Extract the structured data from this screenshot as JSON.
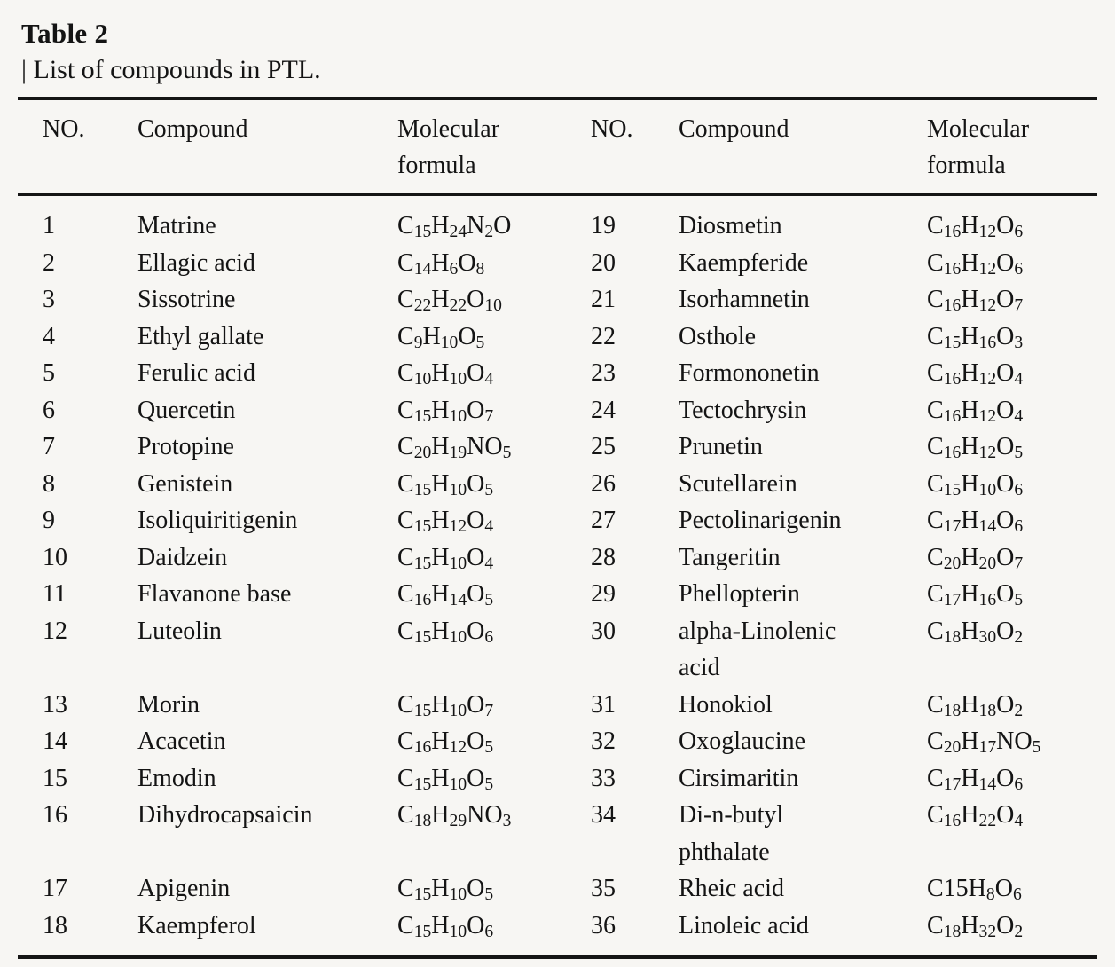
{
  "table": {
    "title": "Table 2",
    "subtitle": "| List of compounds in PTL.",
    "columns": {
      "no": "NO.",
      "compound": "Compound",
      "formula": "Molecular formula"
    },
    "rows": [
      {
        "left": {
          "no": "1",
          "compound": "Matrine",
          "formula": "C~15~H~24~N~2~O"
        },
        "right": {
          "no": "19",
          "compound": "Diosmetin",
          "formula": "C~16~H~12~O~6~"
        }
      },
      {
        "left": {
          "no": "2",
          "compound": "Ellagic acid",
          "formula": "C~14~H~6~O~8~"
        },
        "right": {
          "no": "20",
          "compound": "Kaempferide",
          "formula": "C~16~H~12~O~6~"
        }
      },
      {
        "left": {
          "no": "3",
          "compound": "Sissotrine",
          "formula": "C~22~H~22~O~10~"
        },
        "right": {
          "no": "21",
          "compound": "Isorhamnetin",
          "formula": "C~16~H~12~O~7~"
        }
      },
      {
        "left": {
          "no": "4",
          "compound": "Ethyl gallate",
          "formula": "C~9~H~10~O~5~"
        },
        "right": {
          "no": "22",
          "compound": "Osthole",
          "formula": "C~15~H~16~O~3~"
        }
      },
      {
        "left": {
          "no": "5",
          "compound": "Ferulic acid",
          "formula": "C~10~H~10~O~4~"
        },
        "right": {
          "no": "23",
          "compound": "Formononetin",
          "formula": "C~16~H~12~O~4~"
        }
      },
      {
        "left": {
          "no": "6",
          "compound": "Quercetin",
          "formula": "C~15~H~10~O~7~"
        },
        "right": {
          "no": "24",
          "compound": "Tectochrysin",
          "formula": "C~16~H~12~O~4~"
        }
      },
      {
        "left": {
          "no": "7",
          "compound": "Protopine",
          "formula": "C~20~H~19~NO~5~"
        },
        "right": {
          "no": "25",
          "compound": "Prunetin",
          "formula": "C~16~H~12~O~5~"
        }
      },
      {
        "left": {
          "no": "8",
          "compound": "Genistein",
          "formula": "C~15~H~10~O~5~"
        },
        "right": {
          "no": "26",
          "compound": "Scutellarein",
          "formula": "C~15~H~10~O~6~"
        }
      },
      {
        "left": {
          "no": "9",
          "compound": "Isoliquiritigenin",
          "formula": "C~15~H~12~O~4~"
        },
        "right": {
          "no": "27",
          "compound": "Pectolinarigenin",
          "formula": "C~17~H~14~O~6~"
        }
      },
      {
        "left": {
          "no": "10",
          "compound": "Daidzein",
          "formula": "C~15~H~10~O~4~"
        },
        "right": {
          "no": "28",
          "compound": "Tangeritin",
          "formula": "C~20~H~20~O~7~"
        }
      },
      {
        "left": {
          "no": "11",
          "compound": "Flavanone base",
          "formula": "C~16~H~14~O~5~"
        },
        "right": {
          "no": "29",
          "compound": "Phellopterin",
          "formula": "C~17~H~16~O~5~"
        }
      },
      {
        "left": {
          "no": "12",
          "compound": "Luteolin",
          "formula": "C~15~H~10~O~6~"
        },
        "right": {
          "no": "30",
          "compound": "alpha-Linolenic\nacid",
          "formula": "C~18~H~30~O~2~"
        }
      },
      {
        "left": {
          "no": "13",
          "compound": "Morin",
          "formula": "C~15~H~10~O~7~"
        },
        "right": {
          "no": "31",
          "compound": "Honokiol",
          "formula": "C~18~H~18~O~2~"
        }
      },
      {
        "left": {
          "no": "14",
          "compound": "Acacetin",
          "formula": "C~16~H~12~O~5~"
        },
        "right": {
          "no": "32",
          "compound": "Oxoglaucine",
          "formula": "C~20~H~17~NO~5~"
        }
      },
      {
        "left": {
          "no": "15",
          "compound": "Emodin",
          "formula": "C~15~H~10~O~5~"
        },
        "right": {
          "no": "33",
          "compound": "Cirsimaritin",
          "formula": "C~17~H~14~O~6~"
        }
      },
      {
        "left": {
          "no": "16",
          "compound": "Dihydrocapsaicin",
          "formula": "C~18~H~29~NO~3~"
        },
        "right": {
          "no": "34",
          "compound": "Di-n-butyl\nphthalate",
          "formula": "C~16~H~22~O~4~"
        }
      },
      {
        "left": {
          "no": "17",
          "compound": "Apigenin",
          "formula": "C~15~H~10~O~5~"
        },
        "right": {
          "no": "35",
          "compound": "Rheic acid",
          "formula": "C15H~8~O~6~"
        }
      },
      {
        "left": {
          "no": "18",
          "compound": "Kaempferol",
          "formula": "C~15~H~10~O~6~"
        },
        "right": {
          "no": "36",
          "compound": "Linoleic acid",
          "formula": "C~18~H~32~O~2~"
        }
      }
    ]
  }
}
